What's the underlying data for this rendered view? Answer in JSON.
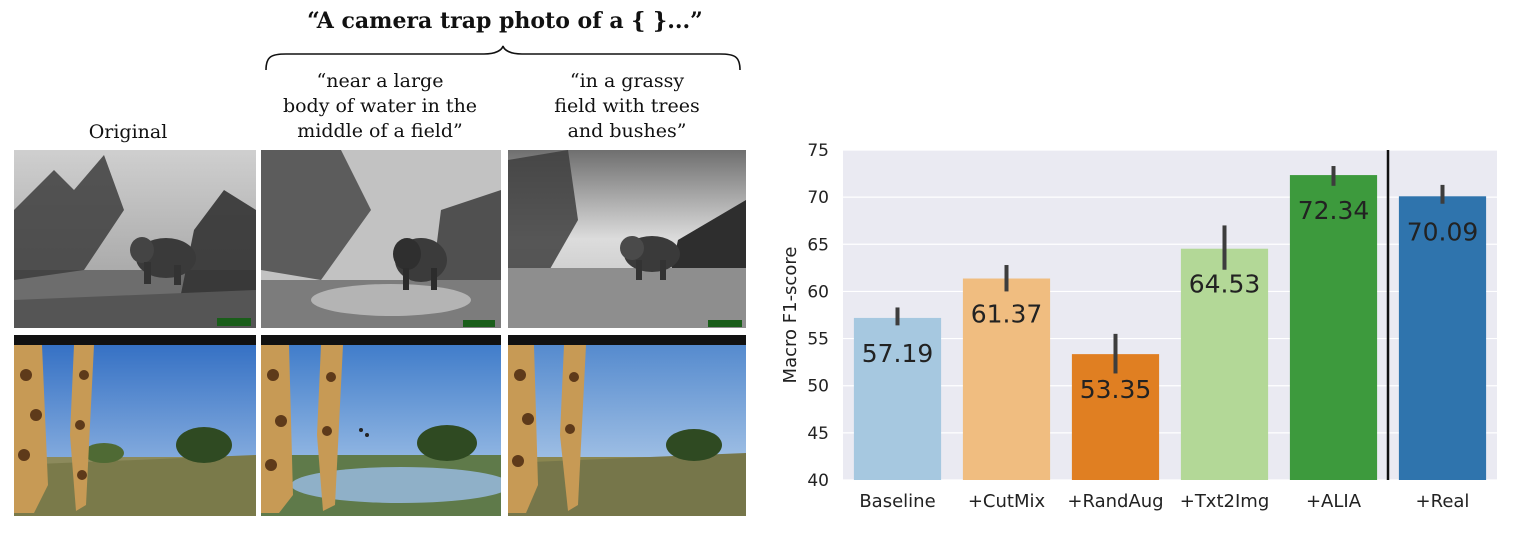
{
  "figure": {
    "prompt_title": "“A camera trap photo of a { }...”",
    "columns": [
      {
        "lines": [
          "Original"
        ]
      },
      {
        "lines": [
          "“near a large",
          "body of water in the",
          "middle of a field”"
        ]
      },
      {
        "lines": [
          "“in a grassy",
          "field with trees",
          "and bushes”"
        ]
      }
    ]
  },
  "chart_data": {
    "type": "bar",
    "categories": [
      "Baseline",
      "+CutMix",
      "+RandAug",
      "+Txt2Img",
      "+ALIA",
      "+Real"
    ],
    "values": [
      57.19,
      61.37,
      53.35,
      64.53,
      72.34,
      70.09
    ],
    "value_labels": [
      "57.19",
      "61.37",
      "53.35",
      "64.53",
      "72.34",
      "70.09"
    ],
    "error_low": [
      56.4,
      60.0,
      51.3,
      62.3,
      71.2,
      69.3
    ],
    "error_high": [
      58.3,
      62.8,
      55.5,
      67.0,
      73.3,
      71.3
    ],
    "colors": [
      "#a6c8e0",
      "#f0bd80",
      "#e07f22",
      "#b3d897",
      "#3d9a3d",
      "#2f74ad"
    ],
    "ylabel": "Macro F1-score",
    "xlabel": "",
    "ylim": [
      40,
      75
    ],
    "yticks": [
      40,
      45,
      50,
      55,
      60,
      65,
      70,
      75
    ],
    "ytick_labels": [
      "40",
      "45",
      "50",
      "55",
      "60",
      "65",
      "70",
      "75"
    ],
    "grid": true,
    "background": "#eaeaf2",
    "separator_after_index": 4
  }
}
